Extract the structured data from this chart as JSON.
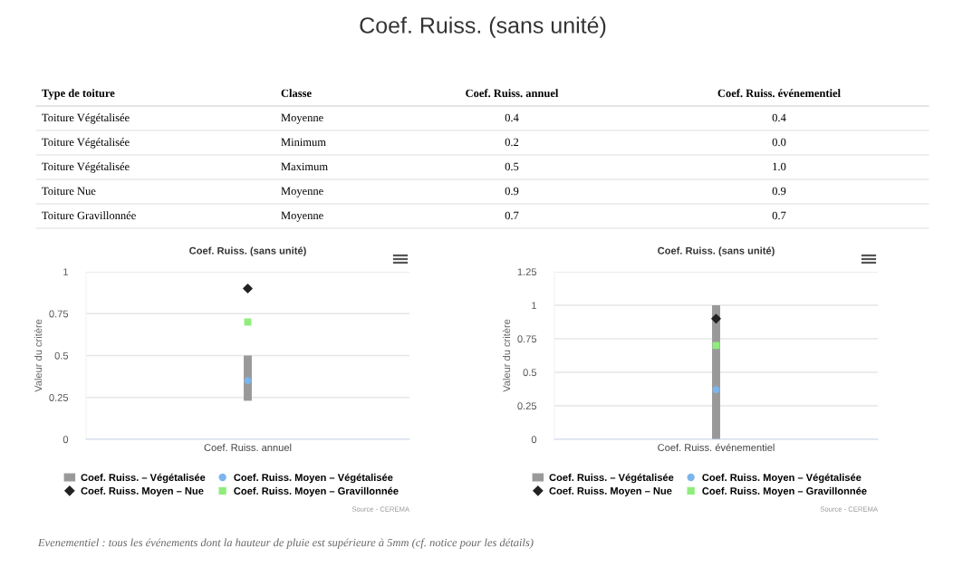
{
  "chart_data": [
    {
      "type": "other",
      "title": "Coef. Ruiss. (sans unité)",
      "categories": [
        "Type de toiture",
        "Classe",
        "Coef. Ruiss. annuel",
        "Coef. Ruiss. événementiel"
      ],
      "annotations": [
        "Toiture Végétalisée",
        "Moyenne",
        "0.4",
        "0.4",
        "Toiture Végétalisée",
        "Minimum",
        "0.2",
        "0.0",
        "Toiture Végétalisée",
        "Maximum",
        "0.5",
        "1.0",
        "Toiture Nue",
        "Moyenne",
        "0.9",
        "0.9",
        "Toiture Gravillonnée",
        "Moyenne",
        "0.7",
        "0.7"
      ]
    },
    {
      "type": "bar",
      "title": "Coef. Ruiss. (sans unité)",
      "ylabel": "Valeur du critère",
      "categories": [
        "Coef. Ruiss. annuel"
      ],
      "ylim": [
        0,
        1
      ],
      "yticks": [
        0,
        0.25,
        0.5,
        0.75,
        1
      ],
      "grid": "y",
      "legend": "bottom",
      "series": [
        {
          "name": "Coef. Ruiss. – Végétalisée",
          "type": "bar",
          "color": "#999999",
          "base": [
            0.23
          ],
          "values": [
            0.27
          ]
        },
        {
          "name": "Coef. Ruiss. Moyen – Végétalisée",
          "type": "scatter",
          "marker": "circle",
          "color": "#7cb5ec",
          "values": [
            0.35
          ]
        },
        {
          "name": "Coef. Ruiss. Moyen – Nue",
          "type": "scatter",
          "marker": "diamond",
          "color": "#222222",
          "values": [
            0.9
          ]
        },
        {
          "name": "Coef. Ruiss. Moyen – Gravillonnée",
          "type": "scatter",
          "marker": "square",
          "color": "#90ed7d",
          "values": [
            0.7
          ]
        }
      ],
      "annotations": [
        "Source - CEREMA"
      ]
    },
    {
      "type": "bar",
      "title": "Coef. Ruiss. (sans unité)",
      "ylabel": "Valeur du critère",
      "categories": [
        "Coef. Ruiss. événementiel"
      ],
      "ylim": [
        0,
        1.25
      ],
      "yticks": [
        0,
        0.25,
        0.5,
        0.75,
        1,
        1.25
      ],
      "grid": "y",
      "legend": "bottom",
      "series": [
        {
          "name": "Coef. Ruiss. – Végétalisée",
          "type": "bar",
          "color": "#999999",
          "base": [
            0
          ],
          "values": [
            1.0
          ]
        },
        {
          "name": "Coef. Ruiss. Moyen – Végétalisée",
          "type": "scatter",
          "marker": "circle",
          "color": "#7cb5ec",
          "values": [
            0.37
          ]
        },
        {
          "name": "Coef. Ruiss. Moyen – Nue",
          "type": "scatter",
          "marker": "diamond",
          "color": "#222222",
          "values": [
            0.9
          ]
        },
        {
          "name": "Coef. Ruiss. Moyen – Gravillonnée",
          "type": "scatter",
          "marker": "square",
          "color": "#90ed7d",
          "values": [
            0.7
          ]
        }
      ],
      "annotations": [
        "Source - CEREMA"
      ]
    },
    {
      "type": "other",
      "annotations": [
        "Evenementiel : tous les événements dont la hauteur de pluie est supérieure à 5mm (cf. notice pour les détails)"
      ]
    }
  ]
}
